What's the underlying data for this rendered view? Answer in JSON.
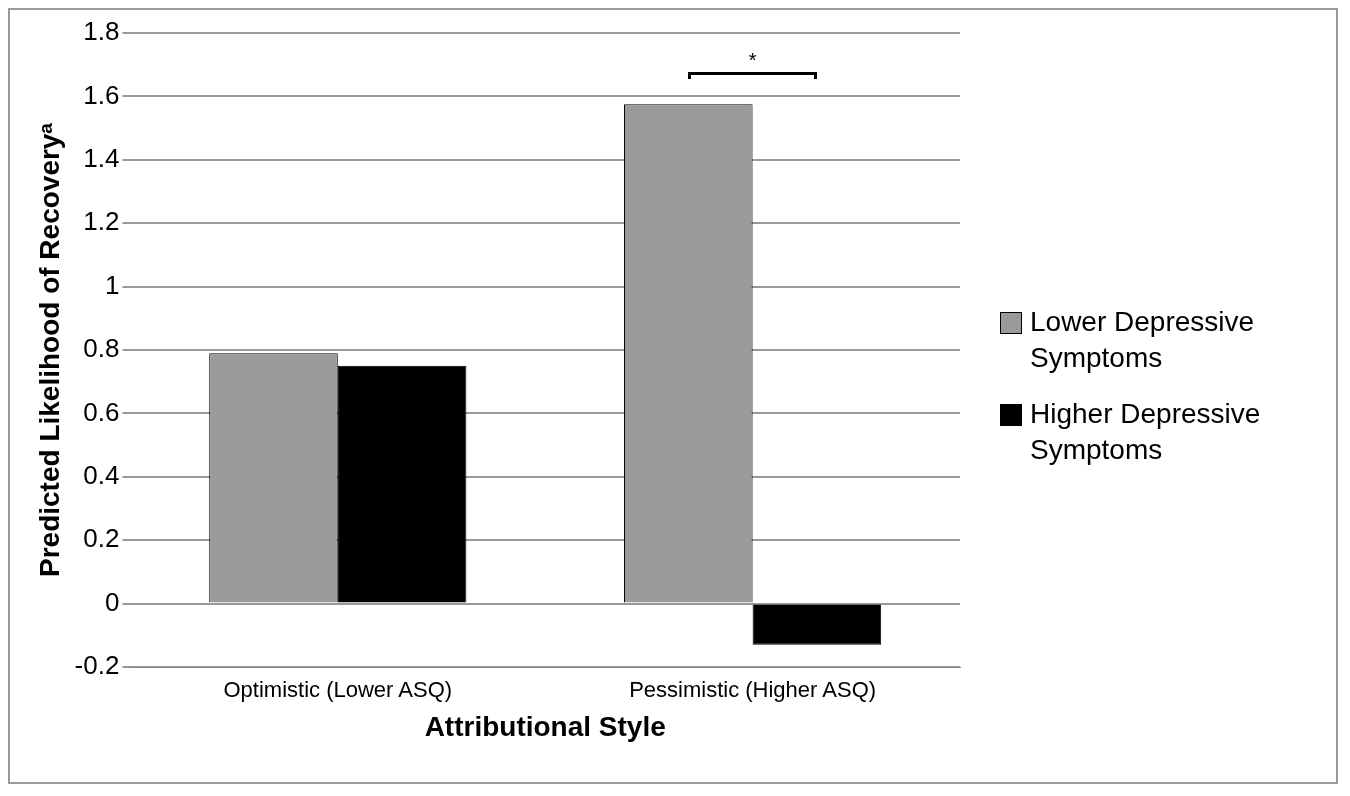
{
  "chart_data": {
    "type": "bar",
    "xlabel": "Attributional Style",
    "ylabel": "Predicted Likelihood of Recoveryᵃ",
    "categories": [
      "Optimistic (Lower ASQ)",
      "Pessimistic (Higher ASQ)"
    ],
    "series": [
      {
        "name": "Lower Depressive Symptoms",
        "color": "#9a9a9a",
        "values": [
          0.79,
          1.575
        ]
      },
      {
        "name": "Higher Depressive Symptoms",
        "color": "#000000",
        "values": [
          0.75,
          -0.13
        ]
      }
    ],
    "ylim": [
      -0.2,
      1.8
    ],
    "yticks": [
      -0.2,
      0,
      0.2,
      0.4,
      0.6,
      0.8,
      1,
      1.2,
      1.4,
      1.6,
      1.8
    ],
    "grid": "y",
    "legend": "right",
    "annotations": [
      "*"
    ]
  }
}
